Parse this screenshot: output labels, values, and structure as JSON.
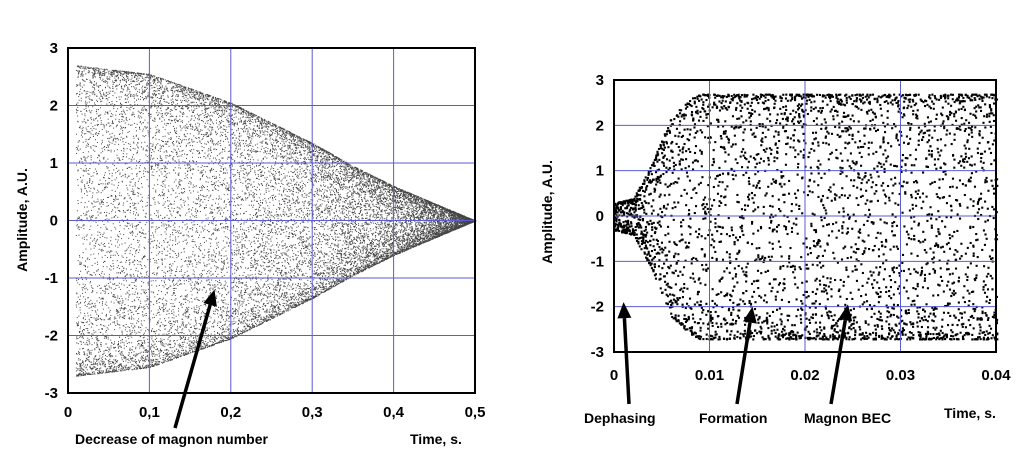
{
  "chart_data": [
    {
      "type": "scatter",
      "description_note": "dense oscillating point cloud with decaying envelope",
      "xlabel": "Time, s.",
      "ylabel": "Amplitude, A.U.",
      "xlim": [
        0,
        0.5
      ],
      "ylim": [
        -3,
        3
      ],
      "x_ticks": [
        0,
        0.1,
        0.2,
        0.3,
        0.4,
        0.5
      ],
      "x_tick_labels": [
        "0",
        "0,1",
        "0,2",
        "0,3",
        "0,4",
        "0,5"
      ],
      "y_ticks": [
        3,
        2,
        1,
        0,
        -1,
        -2,
        -3
      ],
      "y_tick_labels": [
        "3",
        "2",
        "1",
        "0",
        "-1",
        "-2",
        "-3"
      ],
      "grid": true,
      "grid_color": "#5b5bd6",
      "envelope": {
        "x": [
          0.01,
          0.1,
          0.2,
          0.25,
          0.3,
          0.35,
          0.4,
          0.45,
          0.48,
          0.5
        ],
        "amplitude": [
          2.7,
          2.55,
          2.05,
          1.7,
          1.35,
          0.95,
          0.6,
          0.3,
          0.12,
          0.0
        ]
      },
      "annotations": [
        {
          "text": "Decrease of magnon number",
          "points_to": {
            "x": 0.18,
            "y": -1.2
          }
        }
      ]
    },
    {
      "type": "scatter",
      "xlabel": "Time, s.",
      "ylabel": "Amplitude, A.U.",
      "xlim": [
        0,
        0.04
      ],
      "ylim": [
        -3,
        3
      ],
      "x_ticks": [
        0,
        0.01,
        0.02,
        0.03,
        0.04
      ],
      "x_tick_labels": [
        "0",
        "0.01",
        "0.02",
        "0.03",
        "0.04"
      ],
      "y_ticks": [
        3,
        2,
        1,
        0,
        -1,
        -2,
        -3
      ],
      "y_tick_labels": [
        "3",
        "2",
        "1",
        "0",
        "-1",
        "-2",
        "-3"
      ],
      "grid": true,
      "grid_color": "#5b5bd6",
      "envelope": {
        "x": [
          0,
          0.002,
          0.004,
          0.006,
          0.008,
          0.009,
          0.04
        ],
        "amplitude": [
          0.3,
          0.4,
          1.2,
          2.2,
          2.6,
          2.7,
          2.7
        ]
      },
      "annotations": [
        {
          "text": "Dephasing",
          "points_to": {
            "x": 0.001,
            "y": -1.9
          }
        },
        {
          "text": "Formation",
          "points_to": {
            "x": 0.0145,
            "y": -2.0
          }
        },
        {
          "text": "Magnon BEC",
          "points_to": {
            "x": 0.0245,
            "y": -1.95
          }
        }
      ]
    }
  ]
}
